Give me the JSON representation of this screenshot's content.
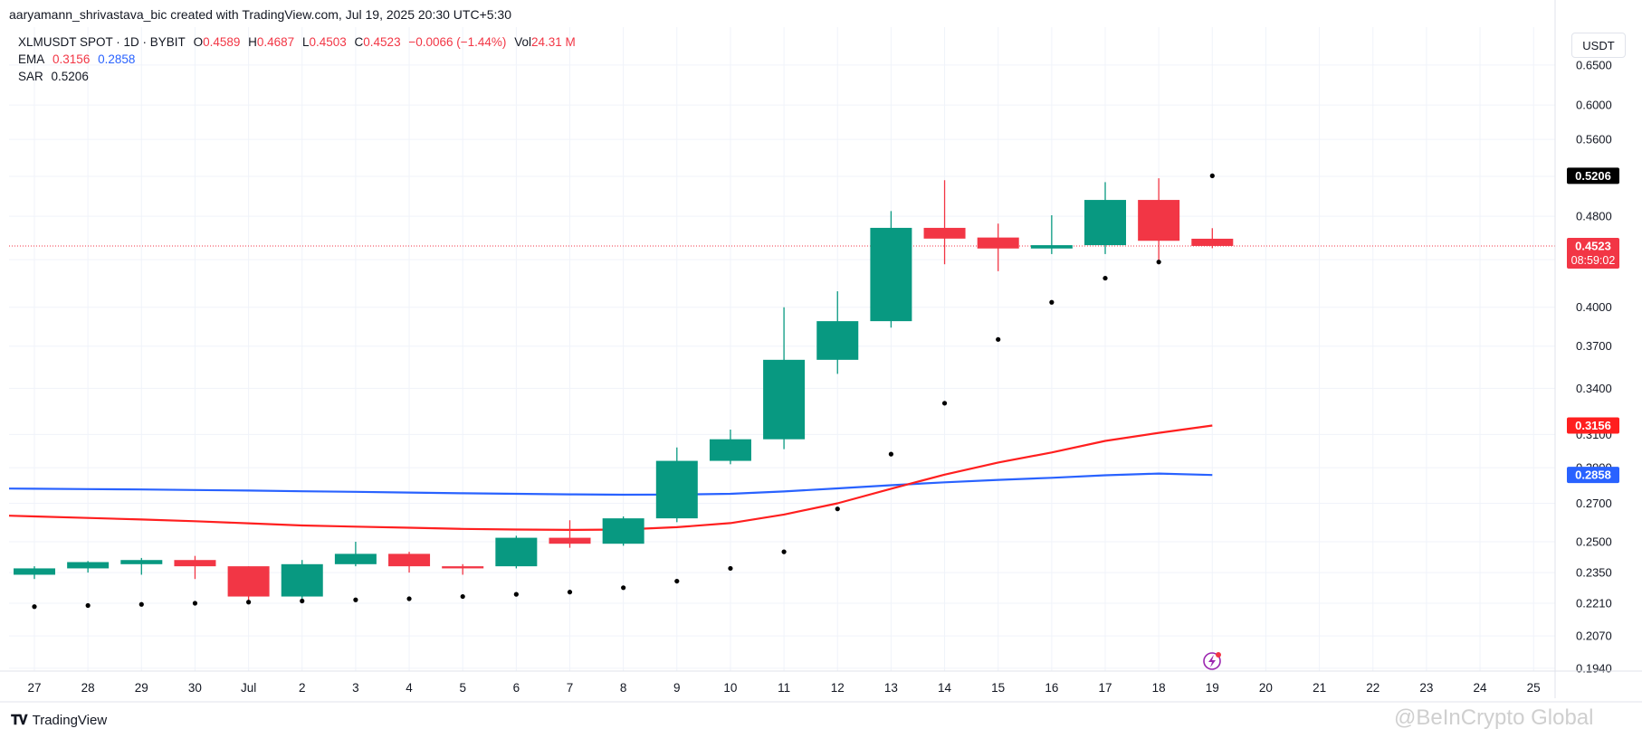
{
  "header": {
    "text": "aaryamann_shrivastava_bic created with TradingView.com, Jul 19, 2025 20:30 UTC+5:30"
  },
  "legend": {
    "symbol": "XLMUSDT SPOT · 1D · BYBIT",
    "open_label": "O",
    "open": "0.4589",
    "high_label": "H",
    "high": "0.4687",
    "low_label": "L",
    "low": "0.4503",
    "close_label": "C",
    "close": "0.4523",
    "change": "−0.0066 (−1.44%)",
    "vol_label": "Vol",
    "vol": "24.31 M",
    "ema_label": "EMA",
    "ema_a": "0.3156",
    "ema_b": "0.2858",
    "sar_label": "SAR",
    "sar": "0.5206"
  },
  "currency_button": "USDT",
  "footer": {
    "brand": "TradingView",
    "watermark": "@BeInCrypto Global"
  },
  "colors": {
    "up": "#089981",
    "down": "#f23645",
    "ema_fast": "#ff1f1f",
    "ema_slow": "#2962ff",
    "sar": "#000000",
    "grid": "#f0f3fa"
  },
  "chart_data": {
    "type": "candlestick",
    "price_scale": "log",
    "y_ticks": [
      "0.1940",
      "0.2070",
      "0.2210",
      "0.2350",
      "0.2500",
      "0.2700",
      "0.2900",
      "0.3100",
      "0.3400",
      "0.3700",
      "0.4000",
      "0.4400",
      "0.4800",
      "0.5200",
      "0.5600",
      "0.6000",
      "0.6500"
    ],
    "x_labels": [
      "27",
      "28",
      "29",
      "30",
      "Jul",
      "2",
      "3",
      "4",
      "5",
      "6",
      "7",
      "8",
      "9",
      "10",
      "11",
      "12",
      "13",
      "14",
      "15",
      "16",
      "17",
      "18",
      "19",
      "20",
      "21",
      "22",
      "23",
      "24",
      "25"
    ],
    "candles": [
      {
        "date": "Jun 27",
        "o": 0.234,
        "h": 0.238,
        "l": 0.232,
        "c": 0.237
      },
      {
        "date": "Jun 28",
        "o": 0.237,
        "h": 0.2405,
        "l": 0.235,
        "c": 0.24
      },
      {
        "date": "Jun 29",
        "o": 0.239,
        "h": 0.242,
        "l": 0.234,
        "c": 0.241
      },
      {
        "date": "Jun 30",
        "o": 0.241,
        "h": 0.243,
        "l": 0.232,
        "c": 0.238
      },
      {
        "date": "Jul 1",
        "o": 0.238,
        "h": 0.238,
        "l": 0.222,
        "c": 0.224
      },
      {
        "date": "Jul 2",
        "o": 0.224,
        "h": 0.241,
        "l": 0.221,
        "c": 0.239
      },
      {
        "date": "Jul 3",
        "o": 0.239,
        "h": 0.25,
        "l": 0.238,
        "c": 0.244
      },
      {
        "date": "Jul 4",
        "o": 0.244,
        "h": 0.245,
        "l": 0.235,
        "c": 0.238
      },
      {
        "date": "Jul 5",
        "o": 0.238,
        "h": 0.239,
        "l": 0.234,
        "c": 0.237
      },
      {
        "date": "Jul 6",
        "o": 0.238,
        "h": 0.253,
        "l": 0.237,
        "c": 0.252
      },
      {
        "date": "Jul 7",
        "o": 0.252,
        "h": 0.261,
        "l": 0.247,
        "c": 0.249
      },
      {
        "date": "Jul 8",
        "o": 0.249,
        "h": 0.263,
        "l": 0.248,
        "c": 0.262
      },
      {
        "date": "Jul 9",
        "o": 0.262,
        "h": 0.302,
        "l": 0.26,
        "c": 0.294
      },
      {
        "date": "Jul 10",
        "o": 0.294,
        "h": 0.313,
        "l": 0.292,
        "c": 0.307
      },
      {
        "date": "Jul 11",
        "o": 0.307,
        "h": 0.4,
        "l": 0.301,
        "c": 0.36
      },
      {
        "date": "Jul 12",
        "o": 0.36,
        "h": 0.413,
        "l": 0.35,
        "c": 0.389
      },
      {
        "date": "Jul 13",
        "o": 0.389,
        "h": 0.485,
        "l": 0.384,
        "c": 0.469
      },
      {
        "date": "Jul 14",
        "o": 0.469,
        "h": 0.516,
        "l": 0.436,
        "c": 0.459
      },
      {
        "date": "Jul 15",
        "o": 0.46,
        "h": 0.473,
        "l": 0.43,
        "c": 0.45
      },
      {
        "date": "Jul 16",
        "o": 0.45,
        "h": 0.481,
        "l": 0.445,
        "c": 0.453
      },
      {
        "date": "Jul 17",
        "o": 0.453,
        "h": 0.514,
        "l": 0.445,
        "c": 0.496
      },
      {
        "date": "Jul 18",
        "o": 0.496,
        "h": 0.518,
        "l": 0.436,
        "c": 0.457
      },
      {
        "date": "Jul 19",
        "o": 0.4589,
        "h": 0.4687,
        "l": 0.4503,
        "c": 0.4523
      }
    ],
    "ema_fast": [
      0.263,
      0.2622,
      0.2614,
      0.2605,
      0.2594,
      0.2583,
      0.2577,
      0.2571,
      0.2565,
      0.2562,
      0.256,
      0.2562,
      0.2574,
      0.2595,
      0.264,
      0.27,
      0.278,
      0.286,
      0.293,
      0.299,
      0.306,
      0.311,
      0.3156
    ],
    "ema_slow": [
      0.278,
      0.2778,
      0.2776,
      0.2773,
      0.277,
      0.2766,
      0.2763,
      0.2759,
      0.2755,
      0.2752,
      0.2749,
      0.2747,
      0.2748,
      0.2752,
      0.2765,
      0.2782,
      0.28,
      0.2816,
      0.283,
      0.2842,
      0.2856,
      0.2866,
      0.2858
    ],
    "sar": [
      0.2195,
      0.22,
      0.2205,
      0.221,
      0.2215,
      0.222,
      0.2225,
      0.223,
      0.224,
      0.225,
      0.226,
      0.228,
      0.231,
      0.237,
      0.245,
      0.267,
      0.298,
      0.33,
      0.375,
      0.404,
      0.424,
      0.438,
      0.5206
    ],
    "last_price": "0.4523",
    "countdown": "08:59:02",
    "ema_fast_label": "0.3156",
    "ema_slow_label": "0.2858",
    "sar_label": "0.5206"
  }
}
